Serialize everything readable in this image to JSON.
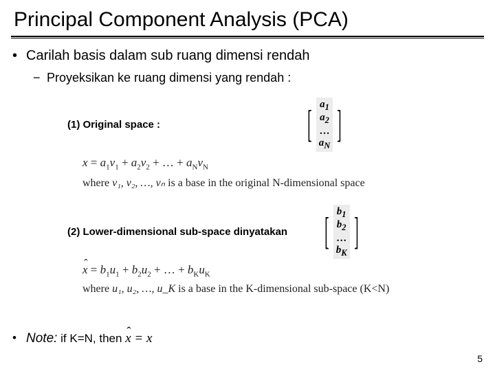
{
  "title": "Principal Component Analysis (PCA)",
  "bullet1": "Carilah basis dalam sub ruang dimensi rendah",
  "bullet2": "Proyeksikan ke ruang dimensi yang rendah :",
  "step1_label": "(1) Original space :",
  "step2_label": "(2) Lower-dimensional sub-space dinyatakan",
  "vec_a": {
    "r1": "a",
    "r2": "a₂",
    "r3": "…",
    "r4": "a_N",
    "sub1": "1",
    "subN": "N"
  },
  "vec_b": {
    "r1": "b₁",
    "r2": "b₂",
    "r3": "…",
    "r4": "b_K"
  },
  "eq1": "x = a₁v₁ + a₂v₂ + … + a_N v_N",
  "where1_pre": "where ",
  "where1_vs": "v₁, v₂, …, vₙ",
  "where1_post": " is a base in the original N-dimensional space",
  "eq2_lhs": "x̂",
  "eq2": " = b₁u₁ + b₂u₂ + … + b_K u_K",
  "where2_pre": "where ",
  "where2_us": "u₁, u₂, …, u_K",
  "where2_post": " is a base in the K-dimensional sub-space (K<N)",
  "note_label": "Note:",
  "note_text": " if K=N, then  ",
  "note_eq_lhs": "x̂",
  "note_eq_rhs": " = x",
  "pagenum": "5"
}
